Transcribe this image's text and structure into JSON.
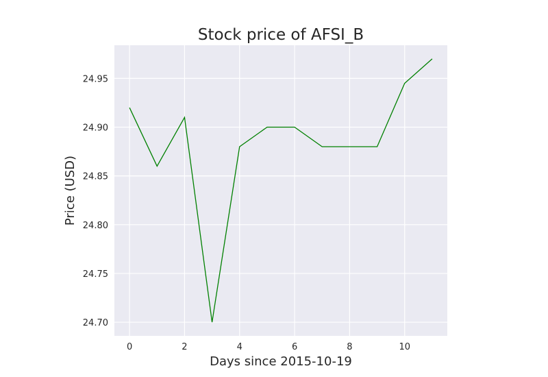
{
  "chart_data": {
    "type": "line",
    "title": "Stock price of AFSI_B",
    "xlabel": "Days since 2015-10-19",
    "ylabel": "Price (USD)",
    "x": [
      0,
      1,
      2,
      3,
      4,
      5,
      6,
      7,
      8,
      9,
      10,
      11
    ],
    "series": [
      {
        "values": [
          24.92,
          24.86,
          24.91,
          24.7,
          24.88,
          24.9,
          24.9,
          24.88,
          24.88,
          24.88,
          24.945,
          24.97
        ]
      }
    ],
    "xlim": [
      -0.55,
      11.55
    ],
    "ylim": [
      24.686,
      24.984
    ],
    "xticks": [
      0,
      2,
      4,
      6,
      8,
      10
    ],
    "xtick_labels": [
      "0",
      "2",
      "4",
      "6",
      "8",
      "10"
    ],
    "yticks": [
      24.7,
      24.75,
      24.8,
      24.85,
      24.9,
      24.95
    ],
    "ytick_labels": [
      "24.70",
      "24.75",
      "24.80",
      "24.85",
      "24.90",
      "24.95"
    ],
    "grid": true,
    "colors": {
      "line": "#008000",
      "plot_background": "#eaeaf2",
      "grid": "#ffffff"
    }
  }
}
